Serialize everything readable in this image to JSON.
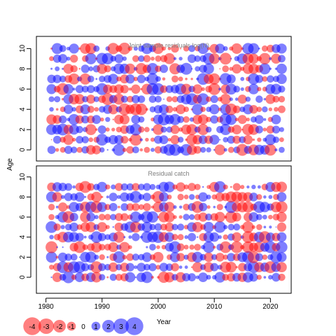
{
  "colors": {
    "positive": "#0000FF",
    "negative": "#FF0000",
    "axis": "#000000",
    "title": "#7F7F7F",
    "grid_box": "#000000"
  },
  "axes": {
    "ylabel": "Age",
    "xlabel": "Year",
    "x_ticks": [
      "1980",
      "1990",
      "2000",
      "2010",
      "2020"
    ],
    "y_ticks": [
      "0",
      "2",
      "4",
      "6",
      "8",
      "10"
    ]
  },
  "legend": {
    "labels": [
      "-4",
      "-3",
      "-2",
      "-1",
      "0",
      "1",
      "2",
      "3",
      "4"
    ]
  },
  "chart_data": [
    {
      "type": "scatter",
      "title": "Joint sample residuals log(N)",
      "xlabel": "",
      "ylabel": "Age",
      "xlim": [
        1978.3,
        2023.7
      ],
      "ylim": [
        -1.1,
        11.2
      ],
      "years": [
        1981,
        2022
      ],
      "ages": [
        0,
        10
      ],
      "encoding": "bubble area proportional to |residual|; blue = positive, red = negative",
      "seed": 1337
    },
    {
      "type": "scatter",
      "title": "Residual catch",
      "xlabel": "Year",
      "ylabel": "Age",
      "xlim": [
        1978.3,
        2023.7
      ],
      "ylim": [
        -1.6,
        11.1
      ],
      "years": [
        1981,
        2022
      ],
      "ages": [
        0,
        9
      ],
      "encoding": "bubble area proportional to |residual|; blue = positive, red = negative",
      "seed": 4242
    }
  ]
}
